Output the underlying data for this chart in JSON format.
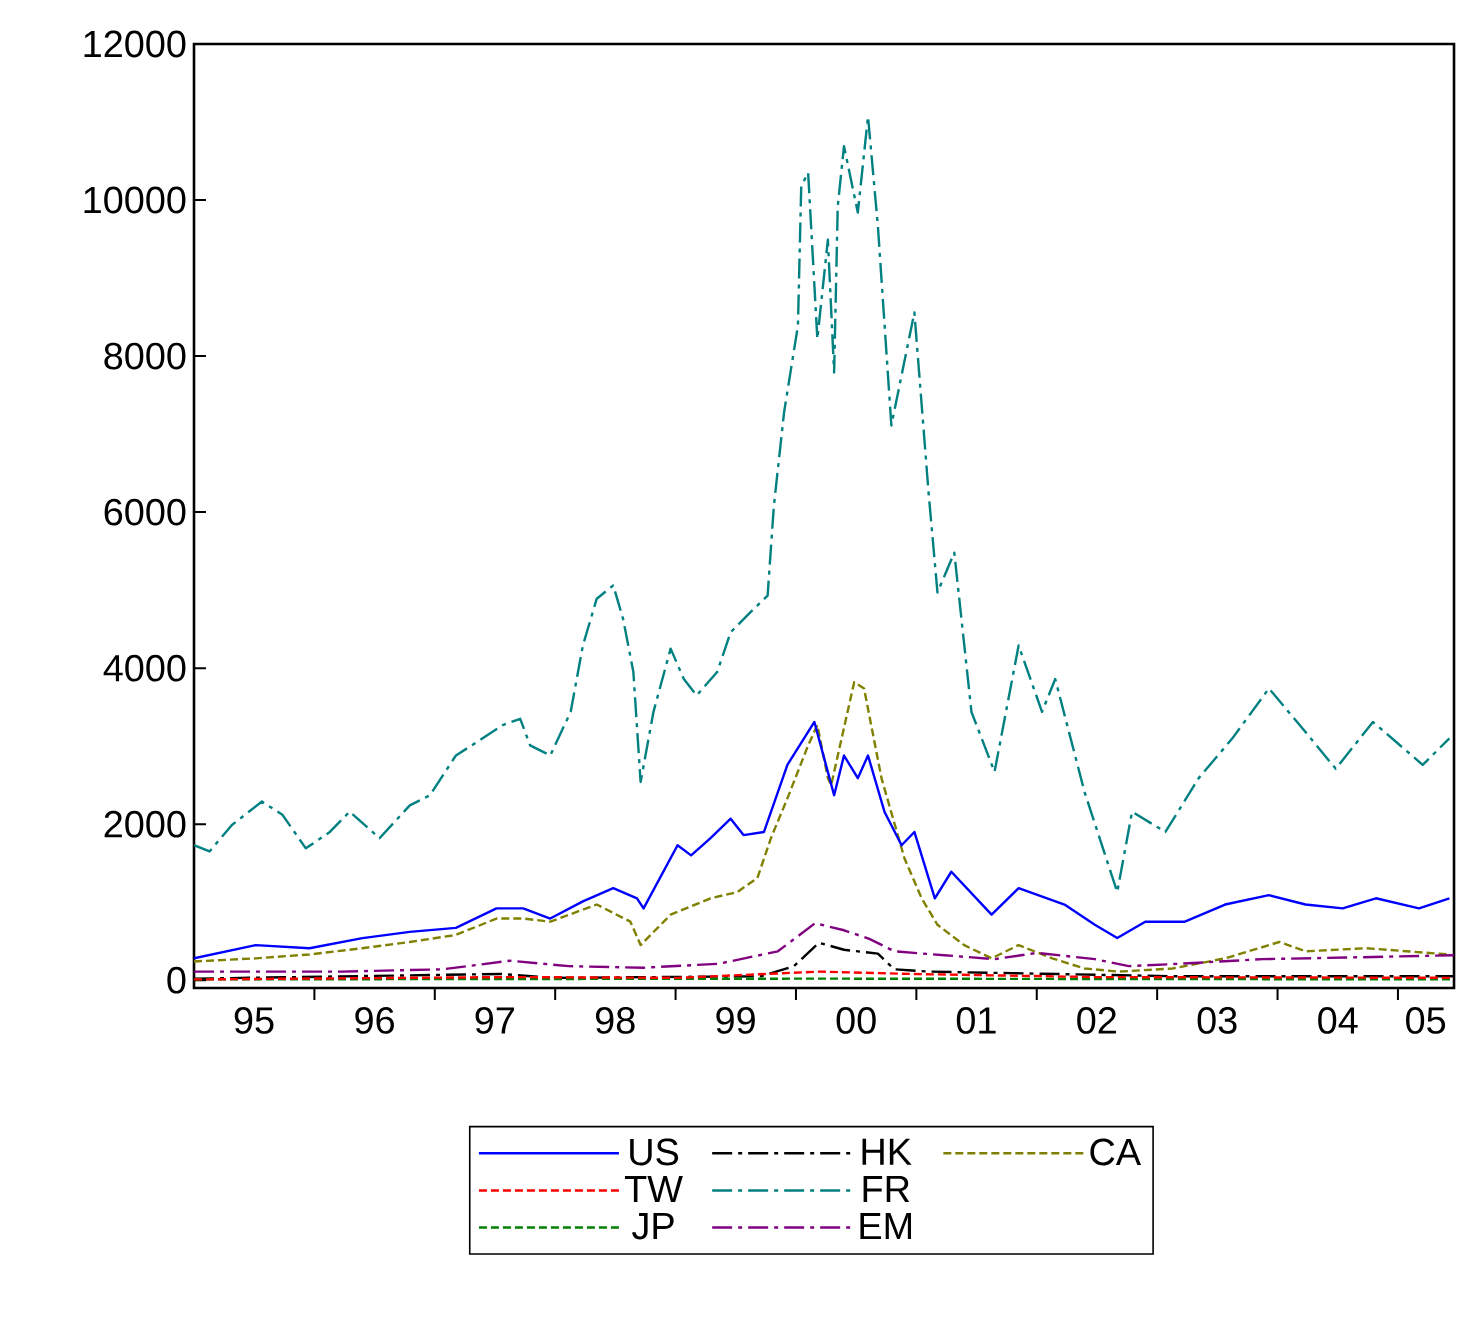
{
  "chart_data": {
    "type": "line",
    "xlim": [
      "1995-01-01",
      "2005-06-20"
    ],
    "ylim": [
      -100,
      12000
    ],
    "yticks": [
      0,
      2000,
      4000,
      6000,
      8000,
      10000,
      12000
    ],
    "xticks": [
      {
        "value": "1995-07-02",
        "label": "95"
      },
      {
        "value": "1996-07-02",
        "label": "96"
      },
      {
        "value": "1997-07-02",
        "label": "97"
      },
      {
        "value": "1998-07-02",
        "label": "98"
      },
      {
        "value": "1999-07-02",
        "label": "99"
      },
      {
        "value": "2000-07-02",
        "label": "00"
      },
      {
        "value": "2001-07-02",
        "label": "01"
      },
      {
        "value": "2002-07-02",
        "label": "02"
      },
      {
        "value": "2003-07-02",
        "label": "03"
      },
      {
        "value": "2004-07-02",
        "label": "04"
      },
      {
        "value": "2005-03-26",
        "label": "05"
      },
      {
        "value": "1996-01-01",
        "label": null
      },
      {
        "value": "1997-01-01",
        "label": null
      },
      {
        "value": "1998-01-01",
        "label": null
      },
      {
        "value": "1999-01-01",
        "label": null
      },
      {
        "value": "2000-01-01",
        "label": null
      },
      {
        "value": "2001-01-01",
        "label": null
      },
      {
        "value": "2002-01-01",
        "label": null
      },
      {
        "value": "2003-01-01",
        "label": null
      },
      {
        "value": "2004-01-01",
        "label": null
      },
      {
        "value": "2005-01-01",
        "label": null
      }
    ],
    "legend": "bottom",
    "series": [
      {
        "name": "US",
        "color": "#0000ff",
        "line_style": "solid",
        "x": [
          "1995-01-01",
          "1995-07-07",
          "1995-12-17",
          "1996-05-26",
          "1996-10-17",
          "1997-03-06",
          "1997-07-07",
          "1997-09-26",
          "1997-12-17",
          "1998-03-26",
          "1998-06-26",
          "1998-09-06",
          "1998-09-26",
          "1999-01-07",
          "1999-02-17",
          "1999-04-17",
          "1999-06-17",
          "1999-07-26",
          "1999-09-26",
          "1999-12-06",
          "2000-02-26",
          "2000-04-26",
          "2000-05-26",
          "2000-07-07",
          "2000-08-07",
          "2000-09-26",
          "2000-11-17",
          "2000-12-26",
          "2001-02-26",
          "2001-04-17",
          "2001-08-17",
          "2001-11-07",
          "2002-03-26",
          "2002-06-26",
          "2002-09-02",
          "2002-11-26",
          "2003-03-26",
          "2003-07-26",
          "2003-12-06",
          "2004-03-26",
          "2004-07-17",
          "2004-10-26",
          "2005-03-06",
          "2005-06-06"
        ],
        "values": [
          280,
          450,
          410,
          540,
          620,
          670,
          920,
          920,
          790,
          1010,
          1180,
          1050,
          920,
          1730,
          1600,
          1820,
          2070,
          1860,
          1900,
          2760,
          3310,
          2370,
          2880,
          2590,
          2880,
          2160,
          1730,
          1900,
          1050,
          1390,
          840,
          1180,
          970,
          710,
          540,
          750,
          750,
          970,
          1090,
          970,
          920,
          1050,
          920,
          1050
        ]
      },
      {
        "name": "TW",
        "color": "#ff0000",
        "line_style": "dashed",
        "x": [
          "1995-01-01",
          "1997-08-17",
          "1999-01-07",
          "2000-03-11",
          "2000-12-17",
          "2002-06-26",
          "2005-06-20"
        ],
        "values": [
          10,
          40,
          30,
          110,
          80,
          40,
          30
        ]
      },
      {
        "name": "JP",
        "color": "#008000",
        "line_style": "dashed",
        "x": [
          "1995-01-01",
          "2000-03-11",
          "2005-06-20"
        ],
        "values": [
          10,
          20,
          10
        ]
      },
      {
        "name": "HK",
        "color": "#000000",
        "line_style": "dashdot",
        "x": [
          "1995-01-01",
          "1997-07-21",
          "1997-12-22",
          "1999-09-17",
          "1999-12-26",
          "2000-03-11",
          "2000-05-26",
          "2000-09-06",
          "2000-10-26",
          "2001-02-07",
          "2001-10-17",
          "2003-03-06",
          "2005-06-20"
        ],
        "values": [
          20,
          80,
          30,
          50,
          180,
          480,
          390,
          340,
          140,
          110,
          90,
          50,
          50
        ]
      },
      {
        "name": "FR",
        "color": "#008080",
        "line_style": "dashdot",
        "x": [
          "1995-01-01",
          "1995-02-17",
          "1995-04-26",
          "1995-07-26",
          "1995-09-26",
          "1995-12-06",
          "1996-02-17",
          "1996-04-17",
          "1996-07-17",
          "1996-10-17",
          "1996-12-17",
          "1997-03-06",
          "1997-05-26",
          "1997-07-26",
          "1997-09-17",
          "1997-10-17",
          "1997-12-17",
          "1998-02-17",
          "1998-03-26",
          "1998-05-07",
          "1998-06-26",
          "1998-07-26",
          "1998-08-26",
          "1998-09-17",
          "1998-10-26",
          "1998-12-17",
          "1999-01-26",
          "1999-03-06",
          "1999-05-07",
          "1999-06-17",
          "1999-08-17",
          "1999-10-07",
          "1999-10-26",
          "1999-11-26",
          "2000-01-07",
          "2000-01-17",
          "2000-02-07",
          "2000-03-06",
          "2000-04-07",
          "2000-04-26",
          "2000-05-07",
          "2000-05-26",
          "2000-07-07",
          "2000-08-07",
          "2000-09-06",
          "2000-10-17",
          "2000-12-26",
          "2001-02-07",
          "2001-03-06",
          "2001-04-26",
          "2001-06-17",
          "2001-08-26",
          "2001-11-07",
          "2002-01-17",
          "2002-02-26",
          "2002-05-26",
          "2002-09-02",
          "2002-10-17",
          "2003-01-26",
          "2003-05-07",
          "2003-08-17",
          "2003-12-06",
          "2004-03-26",
          "2004-06-26",
          "2004-10-17",
          "2005-03-17",
          "2005-06-06"
        ],
        "values": [
          1730,
          1650,
          1990,
          2290,
          2120,
          1690,
          1900,
          2160,
          1820,
          2240,
          2370,
          2880,
          3100,
          3270,
          3350,
          3010,
          2880,
          3440,
          4290,
          4890,
          5060,
          4630,
          3950,
          2540,
          3440,
          4250,
          3860,
          3650,
          3950,
          4460,
          4720,
          4930,
          6080,
          7280,
          8390,
          10180,
          10350,
          8220,
          9490,
          7790,
          9920,
          10690,
          9840,
          11070,
          9670,
          7110,
          8560,
          6250,
          4970,
          5480,
          3440,
          2670,
          4290,
          3440,
          3860,
          2410,
          1130,
          2160,
          1900,
          2590,
          3100,
          3740,
          3180,
          2710,
          3310,
          2760,
          3100
        ]
      },
      {
        "name": "EM",
        "color": "#800080",
        "line_style": "dashdot",
        "x": [
          "1995-01-01",
          "1996-03-26",
          "1997-01-26",
          "1997-08-17",
          "1998-02-11",
          "1998-09-26",
          "1999-05-11",
          "1999-11-07",
          "2000-02-28",
          "2000-05-26",
          "2000-08-11",
          "2000-10-26",
          "2001-03-26",
          "2001-08-26",
          "2002-01-01",
          "2002-06-26",
          "2002-10-07",
          "2003-03-06",
          "2003-11-17",
          "2004-07-26",
          "2005-06-20"
        ],
        "values": [
          110,
          110,
          140,
          250,
          180,
          160,
          210,
          370,
          730,
          640,
          530,
          370,
          320,
          270,
          350,
          270,
          180,
          210,
          270,
          290,
          320
        ]
      },
      {
        "name": "CA",
        "color": "#808000",
        "line_style": "dashed",
        "x": [
          "1995-01-01",
          "1995-07-07",
          "1995-12-17",
          "1996-05-26",
          "1996-10-17",
          "1997-03-06",
          "1997-07-07",
          "1997-09-26",
          "1997-12-17",
          "1998-05-07",
          "1998-08-17",
          "1998-09-17",
          "1998-12-17",
          "1999-04-17",
          "1999-07-07",
          "1999-09-06",
          "1999-10-17",
          "1999-12-06",
          "2000-02-07",
          "2000-03-06",
          "2000-04-07",
          "2000-04-17",
          "2000-06-26",
          "2000-07-26",
          "2000-09-17",
          "2000-11-26",
          "2001-01-17",
          "2001-03-06",
          "2001-05-26",
          "2001-08-17",
          "2001-11-07",
          "2002-02-17",
          "2002-05-26",
          "2002-09-06",
          "2003-02-17",
          "2003-07-26",
          "2004-01-07",
          "2004-03-26",
          "2004-09-26",
          "2005-06-06"
        ],
        "values": [
          240,
          280,
          330,
          410,
          490,
          580,
          790,
          790,
          750,
          970,
          750,
          450,
          840,
          1050,
          1130,
          1310,
          1820,
          2330,
          3010,
          3270,
          2590,
          2500,
          3820,
          3740,
          2590,
          1560,
          1050,
          710,
          450,
          280,
          450,
          280,
          150,
          110,
          150,
          280,
          490,
          370,
          410,
          330
        ]
      }
    ]
  }
}
